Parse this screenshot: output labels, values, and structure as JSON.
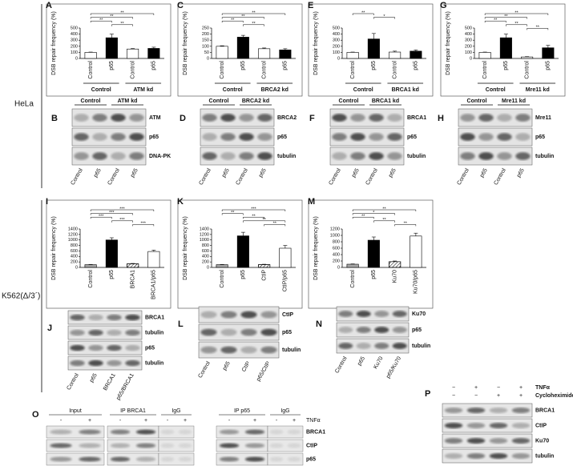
{
  "cell_lines": [
    "HeLa",
    "K562(Δ/3´)"
  ],
  "chart_data": [
    {
      "panel": "A",
      "type": "bar",
      "y_label": "DSB repair frequency (%)",
      "categories": [
        "Control",
        "p65",
        "Control",
        "p65"
      ],
      "groups": [
        "Control",
        "ATM kd"
      ],
      "values": [
        100,
        340,
        155,
        165
      ],
      "errors": [
        5,
        60,
        8,
        20
      ],
      "colors": [
        "#ffffff",
        "#000000",
        "#ffffff",
        "#000000"
      ],
      "hatched": [
        false,
        false,
        false,
        false
      ],
      "ylim": [
        0,
        500
      ],
      "yticks": [
        0,
        100,
        200,
        300,
        400,
        500
      ],
      "significance": [
        {
          "pair": [
            0,
            3
          ],
          "label": "**"
        },
        {
          "pair": [
            0,
            2
          ],
          "label": "**"
        },
        {
          "pair": [
            0,
            1
          ],
          "label": "**"
        },
        {
          "pair": [
            1,
            2
          ],
          "label": "**"
        }
      ]
    },
    {
      "panel": "C",
      "type": "bar",
      "y_label": "DSB repair frequency (%)",
      "categories": [
        "Control",
        "p65",
        "Control",
        "p65"
      ],
      "groups": [
        "Control",
        "BRCA2 kd"
      ],
      "values": [
        100,
        175,
        80,
        70
      ],
      "errors": [
        4,
        15,
        6,
        10
      ],
      "colors": [
        "#ffffff",
        "#000000",
        "#ffffff",
        "#000000"
      ],
      "hatched": [
        false,
        false,
        false,
        false
      ],
      "ylim": [
        0,
        250
      ],
      "yticks": [
        0,
        50,
        100,
        150,
        200,
        250
      ],
      "significance": [
        {
          "pair": [
            0,
            3
          ],
          "label": "**"
        },
        {
          "pair": [
            0,
            2
          ],
          "label": "**"
        },
        {
          "pair": [
            0,
            1
          ],
          "label": "**"
        },
        {
          "pair": [
            1,
            2
          ],
          "label": "**"
        }
      ]
    },
    {
      "panel": "E",
      "type": "bar",
      "y_label": "DSB repair frequency (%)",
      "categories": [
        "Control",
        "p65",
        "Control",
        "p65"
      ],
      "groups": [
        "Control",
        "BRCA1 kd"
      ],
      "values": [
        100,
        320,
        105,
        120
      ],
      "errors": [
        5,
        90,
        15,
        20
      ],
      "colors": [
        "#ffffff",
        "#000000",
        "#ffffff",
        "#000000"
      ],
      "hatched": [
        false,
        false,
        false,
        false
      ],
      "ylim": [
        0,
        500
      ],
      "yticks": [
        0,
        100,
        200,
        300,
        400,
        500
      ],
      "significance": [
        {
          "pair": [
            0,
            1
          ],
          "label": "**"
        },
        {
          "pair": [
            1,
            2
          ],
          "label": "*"
        }
      ]
    },
    {
      "panel": "G",
      "type": "bar",
      "y_label": "DSB repair frequency (%)",
      "categories": [
        "Control",
        "p65",
        "Control",
        "p65"
      ],
      "groups": [
        "Control",
        "Mre11 kd"
      ],
      "values": [
        100,
        340,
        25,
        175
      ],
      "errors": [
        5,
        60,
        5,
        40
      ],
      "colors": [
        "#ffffff",
        "#000000",
        "#ffffff",
        "#000000"
      ],
      "hatched": [
        false,
        false,
        false,
        false
      ],
      "ylim": [
        0,
        500
      ],
      "yticks": [
        0,
        100,
        200,
        300,
        400,
        500
      ],
      "significance": [
        {
          "pair": [
            0,
            3
          ],
          "label": "**"
        },
        {
          "pair": [
            0,
            2
          ],
          "label": "**"
        },
        {
          "pair": [
            0,
            1
          ],
          "label": "**"
        },
        {
          "pair": [
            1,
            2
          ],
          "label": "**"
        },
        {
          "pair": [
            2,
            3
          ],
          "label": "**"
        }
      ]
    },
    {
      "panel": "I",
      "type": "bar",
      "y_label": "DSB repair frequency (%)",
      "categories": [
        "Control",
        "p65",
        "BRCA1",
        "BRCA1/p65"
      ],
      "values": [
        100,
        1000,
        130,
        580
      ],
      "errors": [
        10,
        80,
        15,
        50
      ],
      "colors": [
        "#a6a6a6",
        "#000000",
        "#ffffff",
        "#ffffff"
      ],
      "hatched": [
        false,
        false,
        true,
        false
      ],
      "ylim": [
        0,
        1400
      ],
      "yticks": [
        0,
        200,
        400,
        600,
        800,
        1000,
        1200,
        1400
      ],
      "significance": [
        {
          "pair": [
            0,
            3
          ],
          "label": "***"
        },
        {
          "pair": [
            0,
            2
          ],
          "label": "***"
        },
        {
          "pair": [
            0,
            1
          ],
          "label": "***"
        },
        {
          "pair": [
            1,
            2
          ],
          "label": "***"
        },
        {
          "pair": [
            2,
            3
          ],
          "label": "***"
        }
      ]
    },
    {
      "panel": "K",
      "type": "bar",
      "y_label": "DSB repair frequency (%)",
      "categories": [
        "Control",
        "p65",
        "CtIP",
        "CtIP/p65"
      ],
      "values": [
        100,
        1150,
        100,
        700
      ],
      "errors": [
        10,
        130,
        15,
        100
      ],
      "colors": [
        "#a6a6a6",
        "#000000",
        "#ffffff",
        "#ffffff"
      ],
      "hatched": [
        false,
        false,
        true,
        false
      ],
      "ylim": [
        0,
        1400
      ],
      "yticks": [
        0,
        200,
        400,
        600,
        800,
        1000,
        1200,
        1400
      ],
      "significance": [
        {
          "pair": [
            0,
            3
          ],
          "label": "***"
        },
        {
          "pair": [
            0,
            1
          ],
          "label": "**"
        },
        {
          "pair": [
            1,
            2
          ],
          "label": "**"
        },
        {
          "pair": [
            1,
            3
          ],
          "label": "**"
        },
        {
          "pair": [
            2,
            3
          ],
          "label": "**"
        }
      ]
    },
    {
      "panel": "M",
      "type": "bar",
      "y_label": "DSB repair frequency (%)",
      "categories": [
        "Control",
        "p65",
        "Ku70",
        "Ku70/p65"
      ],
      "values": [
        100,
        850,
        180,
        980
      ],
      "errors": [
        10,
        100,
        20,
        90
      ],
      "colors": [
        "#a6a6a6",
        "#000000",
        "#ffffff",
        "#ffffff"
      ],
      "hatched": [
        false,
        false,
        true,
        false
      ],
      "ylim": [
        0,
        1200
      ],
      "yticks": [
        0,
        200,
        400,
        600,
        800,
        1000,
        1200
      ],
      "significance": [
        {
          "pair": [
            0,
            3
          ],
          "label": "**"
        },
        {
          "pair": [
            0,
            2
          ],
          "label": "*"
        },
        {
          "pair": [
            0,
            1
          ],
          "label": "**"
        },
        {
          "pair": [
            1,
            2
          ],
          "label": "**"
        },
        {
          "pair": [
            2,
            3
          ],
          "label": "**"
        }
      ]
    }
  ],
  "blots": [
    {
      "panel": "B",
      "groups": [
        "Control",
        "ATM kd"
      ],
      "lanes": [
        "Control",
        "p65",
        "Control",
        "p65"
      ],
      "bands": [
        "ATM",
        "p65",
        "DNA-PK"
      ]
    },
    {
      "panel": "D",
      "groups": [
        "Control",
        "BRCA2 kd"
      ],
      "lanes": [
        "Control",
        "p65",
        "Control",
        "p65"
      ],
      "bands": [
        "BRCA2",
        "p65",
        "tubulin"
      ]
    },
    {
      "panel": "F",
      "groups": [
        "Control",
        "BRCA1 kd"
      ],
      "lanes": [
        "Control",
        "p65",
        "Control",
        "p65"
      ],
      "bands": [
        "BRCA1",
        "p65",
        "tubulin"
      ]
    },
    {
      "panel": "H",
      "groups": [
        "Control",
        "Mre11 kd"
      ],
      "lanes": [
        "Control",
        "p65",
        "Control",
        "p65"
      ],
      "bands": [
        "Mre11",
        "p65",
        "tubulin"
      ]
    },
    {
      "panel": "J",
      "lanes": [
        "Control",
        "p65",
        "BRCA1",
        "p65/BRCA1"
      ],
      "bands": [
        "BRCA1",
        "tubulin",
        "p65",
        "tubulin"
      ]
    },
    {
      "panel": "L",
      "lanes": [
        "Control",
        "p65",
        "CtIP",
        "p65/CtIP"
      ],
      "bands": [
        "CtIP",
        "p65",
        "tubulin"
      ]
    },
    {
      "panel": "N",
      "lanes": [
        "Control",
        "p65",
        "Ku70",
        "p65/Ku70"
      ],
      "bands": [
        "Ku70",
        "p65",
        "tubulin"
      ]
    }
  ],
  "ip_panel": {
    "panel": "O",
    "treatment": "TNFα",
    "groups": [
      {
        "label": "Input",
        "lanes": [
          "-",
          "+"
        ]
      },
      {
        "label": "IP BRCA1",
        "lanes": [
          "-",
          "+"
        ]
      },
      {
        "label": "IgG",
        "lanes": [
          "-",
          "+"
        ]
      },
      {
        "label": "IP p65",
        "lanes": [
          "-",
          "+"
        ]
      },
      {
        "label": "IgG",
        "lanes": [
          "-",
          "+"
        ]
      }
    ],
    "bands": [
      "BRCA1",
      "CtIP",
      "p65"
    ]
  },
  "chx_panel": {
    "panel": "P",
    "conditions": [
      {
        "label": "TNFα",
        "lanes": [
          "−",
          "+",
          "−",
          "+"
        ]
      },
      {
        "label": "Cycloheximide",
        "lanes": [
          "−",
          "−",
          "+",
          "+"
        ]
      }
    ],
    "bands": [
      "BRCA1",
      "CtIP",
      "Ku70",
      "tubulin"
    ]
  }
}
